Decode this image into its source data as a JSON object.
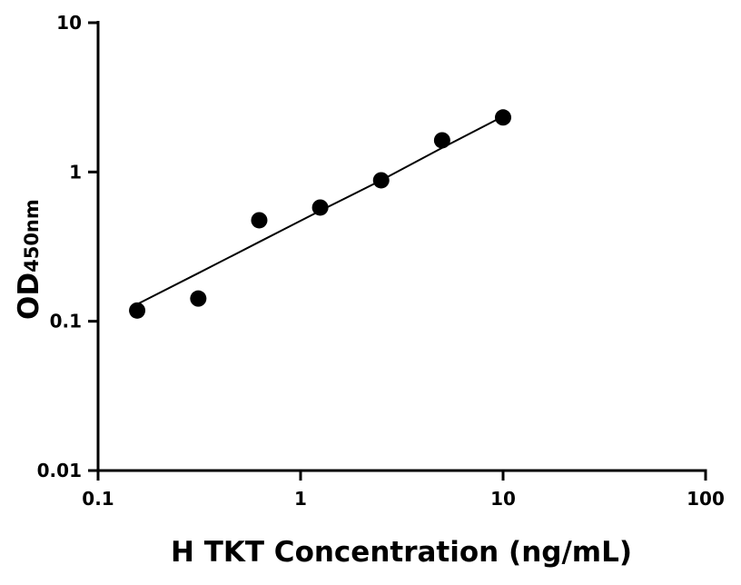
{
  "chart_data": {
    "type": "scatter",
    "xscale": "log",
    "yscale": "log",
    "xlim": [
      0.1,
      100
    ],
    "ylim": [
      0.01,
      10
    ],
    "xticks": [
      "0.1",
      "1",
      "10",
      "100"
    ],
    "yticks": [
      "0.01",
      "0.1",
      "1",
      "10"
    ],
    "xlabel": "H TKT Concentration (ng/mL)",
    "ylabel_main": "OD",
    "ylabel_sub": "450nm",
    "grid": false,
    "points": {
      "x": [
        0.156,
        0.3125,
        0.625,
        1.25,
        2.5,
        5,
        10
      ],
      "y": [
        0.118,
        0.142,
        0.475,
        0.578,
        0.88,
        1.63,
        2.32
      ]
    },
    "fit_curve": {
      "x": [
        0.156,
        0.3125,
        0.625,
        1.25,
        2.5,
        5,
        10
      ],
      "y": [
        0.13,
        0.21,
        0.34,
        0.55,
        0.88,
        1.45,
        2.36
      ]
    },
    "colors": {
      "marker": "#000000",
      "line": "#000000"
    }
  }
}
